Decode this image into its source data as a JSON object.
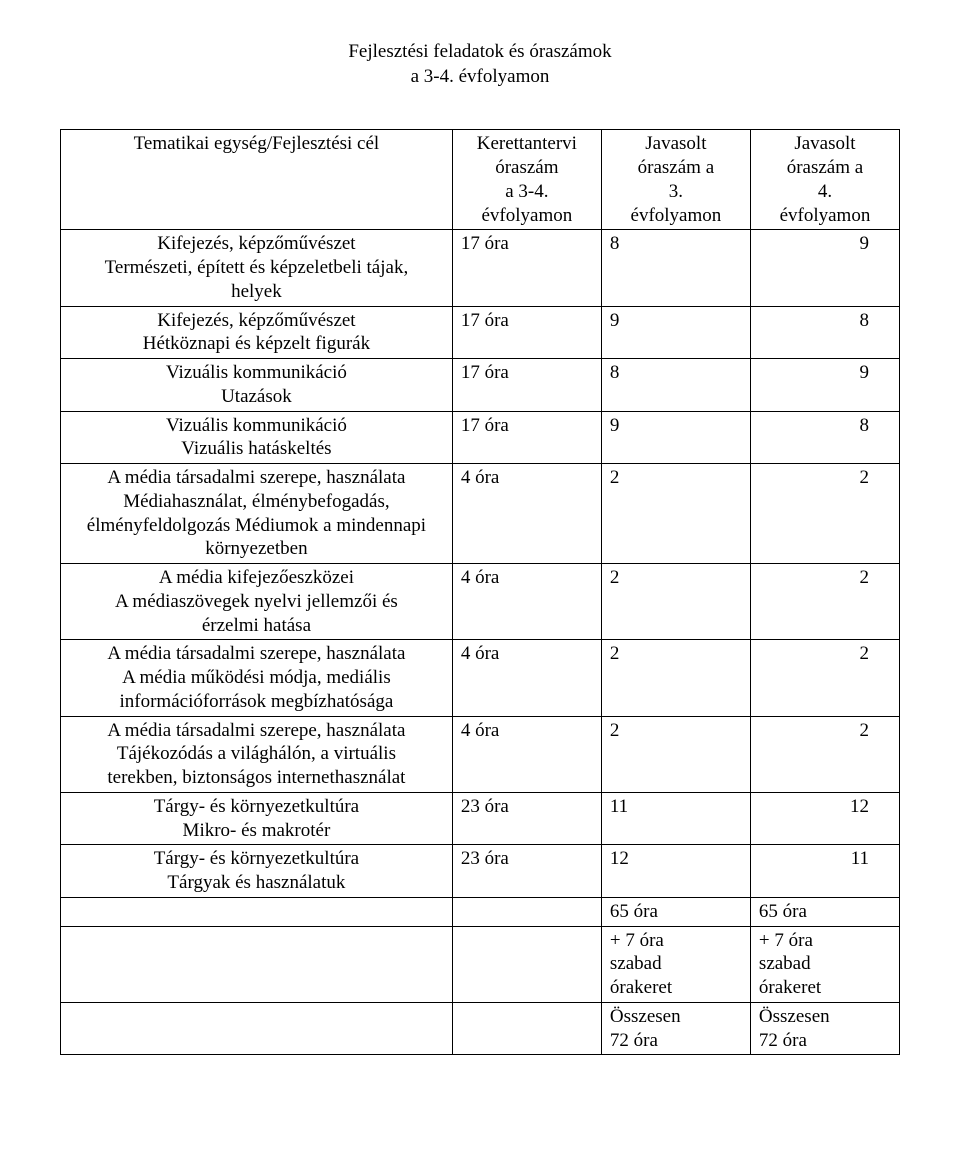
{
  "title_line1": "Fejlesztési feladatok és óraszámok",
  "title_line2": "a 3-4. évfolyamon",
  "headers": {
    "topic": "Tematikai egység/Fejlesztési cél",
    "col1_l1": "Kerettantervi",
    "col1_l2": "óraszám",
    "col1_l3": "a 3-4.",
    "col1_l4": "évfolyamon",
    "col2_l1": "Javasolt",
    "col2_l2": "óraszám a",
    "col2_l3": "3.",
    "col2_l4": "évfolyamon",
    "col3_l1": "Javasolt",
    "col3_l2": "óraszám a",
    "col3_l3": "4.",
    "col3_l4": "évfolyamon"
  },
  "rows": [
    {
      "topic_l1": "Kifejezés, képzőművészet",
      "topic_l2": "Természeti, épített és képzeletbeli tájak,",
      "topic_l3": "helyek",
      "hours": "17 óra",
      "g3": "8",
      "g4": "9"
    },
    {
      "topic_l1": "Kifejezés, képzőművészet",
      "topic_l2": "Hétköznapi és képzelt figurák",
      "hours": "17 óra",
      "g3": "9",
      "g4": "8"
    },
    {
      "topic_l1": "Vizuális kommunikáció",
      "topic_l2": "Utazások",
      "hours": "17 óra",
      "g3": "8",
      "g4": "9"
    },
    {
      "topic_l1": "Vizuális kommunikáció",
      "topic_l2": "Vizuális hatáskeltés",
      "hours": "17 óra",
      "g3": "9",
      "g4": "8"
    },
    {
      "topic_l1": "A média társadalmi szerepe, használata",
      "topic_l2": "Médiahasználat, élménybefogadás,",
      "topic_l3": "élményfeldolgozás Médiumok a mindennapi",
      "topic_l4": "környezetben",
      "hours": "4 óra",
      "g3": "2",
      "g4": "2"
    },
    {
      "topic_l1": "A média kifejezőeszközei",
      "topic_l2": "A médiaszövegek nyelvi jellemzői és",
      "topic_l3": "érzelmi hatása",
      "hours": "4 óra",
      "g3": "2",
      "g4": "2"
    },
    {
      "topic_l1": "A média társadalmi szerepe, használata",
      "topic_l2": "A média működési módja, mediális",
      "topic_l3": "információforrások megbízhatósága",
      "hours": "4 óra",
      "g3": "2",
      "g4": "2"
    },
    {
      "topic_l1": "A média társadalmi szerepe, használata",
      "topic_l2": "Tájékozódás a világhálón, a virtuális",
      "topic_l3": "terekben, biztonságos internethasználat",
      "hours": "4 óra",
      "g3": "2",
      "g4": "2"
    },
    {
      "topic_l1": "Tárgy- és környezetkultúra",
      "topic_l2": "Mikro- és makrotér",
      "hours": "23 óra",
      "g3": "11",
      "g4": "12"
    },
    {
      "topic_l1": "Tárgy- és környezetkultúra",
      "topic_l2": "Tárgyak és használatuk",
      "hours": "23 óra",
      "g3": "12",
      "g4": "11"
    }
  ],
  "totals": {
    "r1_g3": "65 óra",
    "r1_g4": "65 óra",
    "r2_g3_l1": "+ 7 óra",
    "r2_g3_l2": "szabad",
    "r2_g3_l3": "órakeret",
    "r2_g4_l1": "+ 7 óra",
    "r2_g4_l2": "szabad",
    "r2_g4_l3": "órakeret",
    "r3_g3_l1": "Összesen",
    "r3_g3_l2": "72 óra",
    "r3_g4_l1": "Összesen",
    "r3_g4_l2": "72 óra"
  }
}
